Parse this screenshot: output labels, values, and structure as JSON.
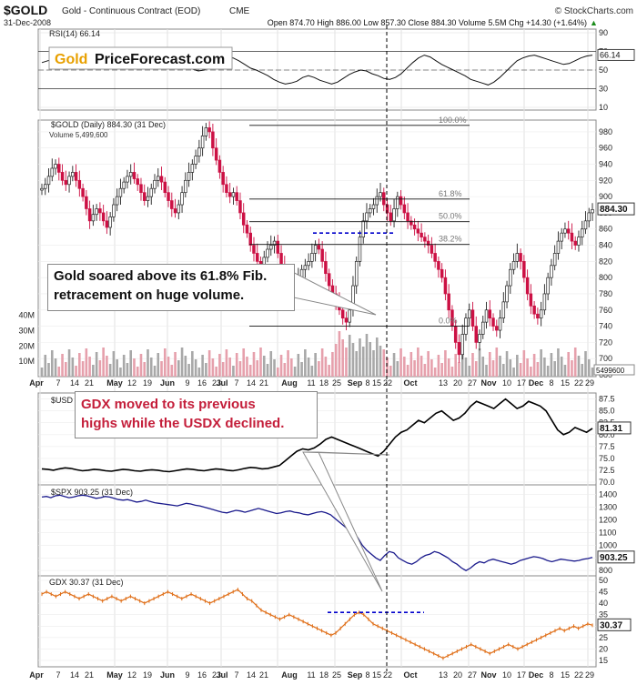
{
  "header": {
    "symbol": "$GOLD",
    "name": "Gold - Continuous Contract (EOD)",
    "exchange": "CME",
    "copyright": "© StockCharts.com",
    "date": "31-Dec-2008",
    "ohlc": "Open 874.70  High 886.00  Low 857.30  Close 884.30  Volume 5.5M  Chg +14.30 (+1.64%)",
    "chg_arrow": "▲"
  },
  "watermark": {
    "brand_left": "Gold",
    "brand_right": "PriceForecast.com"
  },
  "colors": {
    "up": "#222222",
    "down": "#cc1144",
    "usd": "#000000",
    "spx": "#1a1a8c",
    "gdx": "#e0701a",
    "fib_blue": "#0000cc",
    "annotation_text": "#c41e3a",
    "rsi_fill": "#a0505a"
  },
  "annotations": {
    "gold_volume": [
      "Gold soared above its 61.8% Fib.",
      "retracement on huge volume."
    ],
    "gdx_usdx": [
      "GDX moved to its previous",
      "highs while the USDX declined."
    ]
  },
  "chart_data": [
    {
      "id": "rsi",
      "type": "line",
      "title": "RSI(14) 66.14",
      "last_label": "66.14",
      "ylim": [
        10,
        90
      ],
      "yticks": [
        10,
        30,
        50,
        70,
        90
      ],
      "reference_lines": [
        30,
        70
      ],
      "y": [
        58,
        60,
        62,
        61,
        58,
        55,
        56,
        59,
        62,
        64,
        60,
        56,
        54,
        52,
        55,
        60,
        63,
        61,
        57,
        54,
        53,
        55,
        58,
        60,
        57,
        54,
        51,
        49,
        50,
        53,
        57,
        61,
        64,
        63,
        60,
        56,
        52,
        50,
        47,
        44,
        40,
        37,
        35,
        36,
        38,
        42,
        44,
        42,
        39,
        37,
        35,
        37,
        41,
        45,
        48,
        50,
        49,
        46,
        44,
        41,
        40,
        42,
        46,
        52,
        58,
        63,
        66,
        64,
        60,
        56,
        53,
        50,
        47,
        44,
        40,
        38,
        36,
        34,
        37,
        42,
        48,
        54,
        60,
        63,
        65,
        66,
        64,
        62,
        60,
        58,
        56,
        57,
        60,
        63,
        65,
        66
      ]
    },
    {
      "id": "gold",
      "type": "candlestick",
      "title": "$GOLD (Daily) 884.30 (31 Dec)",
      "volume_label": "Volume 5,499,600",
      "volume_last_label": "5499600",
      "last_label": "884.30",
      "ylim": [
        680,
        990
      ],
      "yticks": [
        680,
        700,
        720,
        740,
        760,
        780,
        800,
        820,
        840,
        860,
        880,
        900,
        920,
        940,
        960,
        980
      ],
      "volume_ticks": [
        "10M",
        "20M",
        "30M",
        "40M"
      ],
      "fib_levels": [
        {
          "label": "100.0%",
          "value": 988
        },
        {
          "label": "61.8%",
          "value": 897
        },
        {
          "label": "50.0%",
          "value": 869
        },
        {
          "label": "38.2%",
          "value": 841
        },
        {
          "label": "0.0%",
          "value": 740
        }
      ],
      "fib_line": {
        "value": 855
      },
      "close": [
        910,
        915,
        925,
        935,
        940,
        930,
        920,
        915,
        925,
        930,
        920,
        910,
        900,
        885,
        870,
        878,
        885,
        880,
        870,
        862,
        875,
        890,
        900,
        910,
        918,
        925,
        930,
        922,
        915,
        905,
        895,
        900,
        910,
        920,
        925,
        918,
        905,
        895,
        885,
        880,
        890,
        905,
        920,
        930,
        940,
        950,
        960,
        975,
        985,
        980,
        960,
        945,
        930,
        915,
        905,
        900,
        905,
        895,
        880,
        865,
        855,
        840,
        830,
        820,
        815,
        825,
        835,
        840,
        845,
        830,
        815,
        800,
        790,
        785,
        790,
        800,
        810,
        815,
        820,
        830,
        840,
        835,
        820,
        805,
        790,
        780,
        770,
        760,
        750,
        745,
        760,
        790,
        820,
        850,
        870,
        880,
        885,
        890,
        900,
        905,
        890,
        880,
        870,
        885,
        900,
        890,
        880,
        870,
        865,
        860,
        855,
        850,
        845,
        840,
        830,
        820,
        810,
        800,
        780,
        760,
        740,
        720,
        705,
        730,
        750,
        760,
        740,
        720,
        730,
        745,
        760,
        750,
        740,
        735,
        750,
        770,
        790,
        810,
        820,
        830,
        820,
        800,
        780,
        765,
        755,
        750,
        760,
        780,
        800,
        815,
        830,
        845,
        855,
        860,
        855,
        845,
        840,
        850,
        860,
        870,
        880,
        884
      ]
    },
    {
      "id": "usd",
      "type": "line",
      "title": "$USD 81.31 (31 Dec)",
      "last_label": "81.31",
      "ylim": [
        70,
        88
      ],
      "yticks": [
        "70.0",
        "72.5",
        "75.0",
        "77.5",
        "80.0",
        "82.5",
        "85.0",
        "87.5"
      ],
      "y": [
        72.8,
        72.7,
        72.5,
        72.8,
        73,
        72.9,
        72.6,
        72.4,
        72.5,
        72.7,
        72.6,
        72.4,
        72.3,
        72.5,
        72.7,
        72.6,
        72.4,
        72.3,
        72.5,
        72.6,
        72.5,
        72.3,
        72.2,
        72.4,
        72.6,
        72.8,
        72.7,
        72.5,
        72.4,
        72.6,
        72.8,
        72.7,
        72.5,
        72.4,
        72.6,
        72.9,
        73.1,
        73,
        72.8,
        72.9,
        73.2,
        73.5,
        74.5,
        75.5,
        76.5,
        77,
        76.8,
        77.2,
        78,
        79,
        79.5,
        79,
        78.5,
        78,
        77.5,
        77,
        76.5,
        76,
        75.5,
        76.5,
        78,
        79.5,
        80.5,
        81,
        82,
        83,
        82.5,
        83.5,
        84.5,
        85,
        84,
        83,
        83.5,
        84.5,
        86,
        87,
        86.5,
        86,
        85.5,
        86.5,
        87.5,
        86.5,
        85.5,
        86,
        87,
        86.5,
        86,
        85,
        83,
        81,
        80,
        80.5,
        81.5,
        81,
        80.5,
        81.31
      ]
    },
    {
      "id": "spx",
      "type": "line",
      "title": "$SPX 903.25 (31 Dec)",
      "last_label": "903.25",
      "ylim": [
        780,
        1440
      ],
      "yticks": [
        800,
        900,
        1000,
        1100,
        1200,
        1300,
        1400
      ],
      "y": [
        1380,
        1385,
        1375,
        1390,
        1395,
        1385,
        1375,
        1380,
        1390,
        1395,
        1390,
        1380,
        1370,
        1375,
        1385,
        1380,
        1370,
        1360,
        1355,
        1360,
        1350,
        1340,
        1345,
        1355,
        1345,
        1335,
        1330,
        1325,
        1320,
        1315,
        1310,
        1320,
        1330,
        1325,
        1315,
        1310,
        1300,
        1290,
        1280,
        1270,
        1260,
        1255,
        1265,
        1275,
        1270,
        1260,
        1270,
        1280,
        1290,
        1280,
        1270,
        1260,
        1250,
        1255,
        1265,
        1270,
        1260,
        1255,
        1245,
        1240,
        1250,
        1260,
        1265,
        1255,
        1240,
        1210,
        1180,
        1150,
        1120,
        1100,
        1060,
        1000,
        960,
        930,
        900,
        880,
        920,
        950,
        940,
        900,
        880,
        860,
        850,
        870,
        900,
        920,
        930,
        950,
        940,
        920,
        900,
        870,
        850,
        820,
        800,
        820,
        850,
        870,
        860,
        880,
        890,
        880,
        870,
        860,
        850,
        860,
        880,
        890,
        900,
        910,
        905,
        895,
        880,
        870,
        880,
        890,
        885,
        880,
        875,
        880,
        890,
        895,
        903.25
      ]
    },
    {
      "id": "gdx",
      "type": "line",
      "title": "GDX 30.37 (31 Dec)",
      "last_label": "30.37",
      "ylim": [
        13,
        50
      ],
      "yticks": [
        15,
        20,
        25,
        30,
        35,
        40,
        45,
        50
      ],
      "ref_line": {
        "value": 36
      },
      "y": [
        44,
        45,
        44,
        43,
        44,
        45,
        44,
        43,
        42,
        43,
        44,
        43,
        42,
        41,
        42,
        43,
        42,
        41,
        42,
        43,
        42,
        41,
        40,
        41,
        42,
        43,
        44,
        45,
        44,
        43,
        42,
        43,
        44,
        43,
        42,
        41,
        40,
        41,
        42,
        43,
        44,
        45,
        46,
        44,
        42,
        41,
        39,
        37,
        36,
        35,
        34,
        33,
        34,
        35,
        34,
        33,
        32,
        31,
        30,
        29,
        28,
        27,
        26,
        27,
        29,
        31,
        33,
        35,
        36,
        35,
        33,
        31,
        30,
        29,
        28,
        27,
        26,
        25,
        24,
        23,
        22,
        21,
        20,
        19,
        18,
        17,
        16,
        17,
        18,
        19,
        20,
        21,
        22,
        21,
        20,
        19,
        18,
        19,
        20,
        21,
        22,
        21,
        20,
        21,
        22,
        23,
        24,
        25,
        26,
        27,
        28,
        29,
        28,
        29,
        30,
        29,
        30,
        31,
        30.37
      ]
    }
  ],
  "x_axis": {
    "labels": [
      "Apr",
      "7",
      "14",
      "21",
      "May",
      "12",
      "19",
      "Jun",
      "9",
      "16",
      "23",
      "Jul",
      "7",
      "14",
      "21",
      "Aug",
      "11",
      "18",
      "25",
      "Sep",
      "8",
      "15",
      "22",
      "Oct",
      "13",
      "20",
      "27",
      "Nov",
      "10",
      "17",
      "Dec",
      "8",
      "15",
      "22",
      "29"
    ]
  }
}
